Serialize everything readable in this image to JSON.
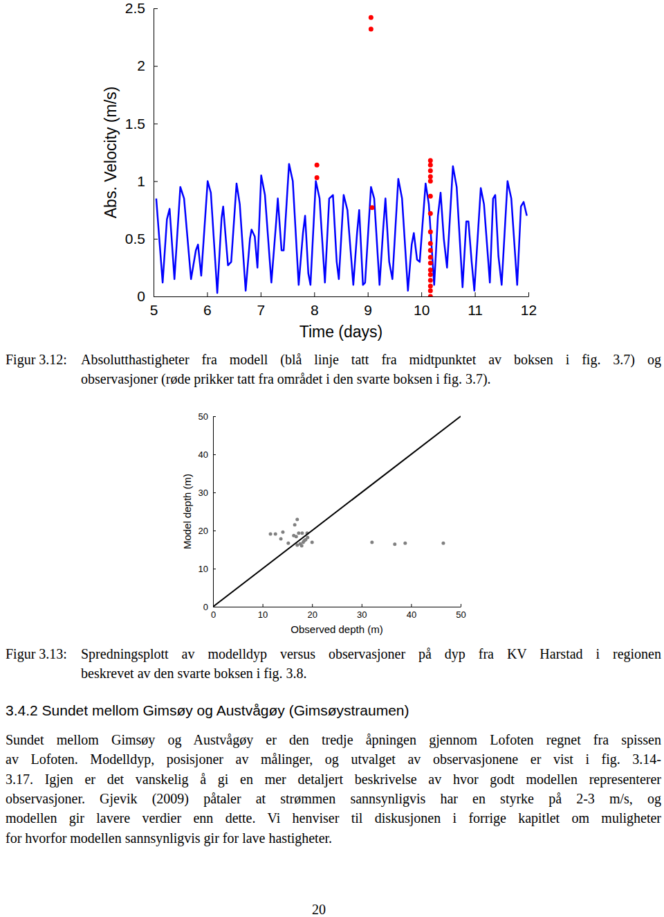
{
  "chart_data": [
    {
      "type": "line",
      "xlabel": "Time (days)",
      "ylabel": "Abs. Velocity (m/s)",
      "xlim": [
        5,
        12
      ],
      "ylim": [
        0,
        2.5
      ],
      "xticks": [
        5,
        6,
        7,
        8,
        9,
        10,
        11,
        12
      ],
      "yticks": [
        0,
        0.5,
        1,
        1.5,
        2,
        2.5
      ],
      "series": [
        {
          "type": "line",
          "color": "#0000ff",
          "line_style": "solid",
          "x": [
            5.05,
            5.17,
            5.25,
            5.3,
            5.39,
            5.5,
            5.57,
            5.7,
            5.79,
            5.83,
            5.89,
            6.01,
            6.07,
            6.19,
            6.27,
            6.3,
            6.39,
            6.45,
            6.55,
            6.61,
            6.72,
            6.8,
            6.83,
            6.89,
            6.94,
            7.01,
            7.08,
            7.2,
            7.29,
            7.32,
            7.39,
            7.43,
            7.53,
            7.6,
            7.71,
            7.79,
            7.83,
            7.89,
            7.93,
            8.03,
            8.1,
            8.2,
            8.28,
            8.35,
            8.42,
            8.46,
            8.55,
            8.62,
            8.73,
            8.8,
            8.84,
            8.91,
            8.95,
            9.06,
            9.12,
            9.22,
            9.29,
            9.33,
            9.4,
            9.46,
            9.57,
            9.64,
            9.75,
            9.82,
            9.86,
            9.92,
            9.97,
            10.08,
            10.14,
            10.24,
            10.31,
            10.36,
            10.42,
            10.48,
            10.59,
            10.66,
            10.77,
            10.84,
            10.88,
            10.94,
            10.99,
            11.11,
            11.17,
            11.28,
            11.34,
            11.38,
            11.44,
            11.5,
            11.61,
            11.68,
            11.79,
            11.86,
            11.91,
            11.97
          ],
          "values": [
            0.85,
            0.12,
            0.67,
            0.76,
            0.15,
            0.95,
            0.85,
            0.15,
            0.4,
            0.45,
            0.18,
            1.0,
            0.9,
            0.03,
            0.68,
            0.78,
            0.27,
            0.3,
            0.98,
            0.8,
            0.05,
            0.5,
            0.58,
            0.52,
            0.25,
            1.05,
            0.88,
            0.12,
            0.65,
            0.85,
            0.4,
            0.4,
            1.15,
            1.0,
            0.1,
            0.55,
            0.7,
            0.2,
            0.1,
            1.0,
            0.85,
            0.12,
            0.85,
            0.88,
            0.3,
            0.15,
            0.88,
            0.75,
            0.1,
            0.55,
            0.75,
            0.1,
            0.12,
            0.95,
            0.85,
            0.1,
            0.6,
            0.85,
            0.3,
            0.15,
            1.02,
            0.85,
            0.05,
            0.45,
            0.55,
            0.32,
            0.3,
            0.98,
            0.8,
            0.1,
            0.7,
            0.9,
            0.5,
            0.25,
            1.13,
            0.95,
            0.08,
            0.65,
            0.65,
            0.3,
            0.05,
            0.94,
            0.8,
            0.12,
            0.85,
            0.88,
            0.35,
            0.1,
            1.0,
            0.85,
            0.1,
            0.78,
            0.82,
            0.7
          ]
        },
        {
          "type": "scatter",
          "color": "#ff0000",
          "marker": "circle",
          "x": [
            8.05,
            8.05,
            9.06,
            9.06,
            9.08,
            10.17,
            10.17,
            10.17,
            10.17,
            10.17,
            10.17,
            10.17,
            10.17,
            10.17,
            10.17,
            10.17,
            10.17,
            10.17,
            10.17,
            10.17,
            10.17,
            10.17,
            10.17
          ],
          "values": [
            1.14,
            1.03,
            2.42,
            2.32,
            0.77,
            1.18,
            1.14,
            1.09,
            1.04,
            1.0,
            0.87,
            0.72,
            0.56,
            0.46,
            0.4,
            0.34,
            0.29,
            0.23,
            0.19,
            0.14,
            0.09,
            0.05,
            0.0
          ]
        }
      ]
    },
    {
      "type": "scatter",
      "xlabel": "Observed depth (m)",
      "ylabel": "Model depth (m)",
      "xlim": [
        0,
        50
      ],
      "ylim": [
        0,
        50
      ],
      "xticks": [
        0,
        10,
        20,
        30,
        40,
        50
      ],
      "yticks": [
        0,
        10,
        20,
        30,
        40,
        50
      ],
      "series": [
        {
          "type": "scatter",
          "color": "#808080",
          "marker": "circle",
          "x": [
            11.6,
            12.6,
            14.1,
            13.7,
            15.2,
            16.5,
            17.0,
            16.3,
            16.8,
            17.3,
            18.0,
            19.0,
            17.0,
            17.6,
            18.2,
            18.4,
            18.7,
            17.9,
            19.1,
            20.0,
            32.1,
            36.7,
            38.8,
            46.5
          ],
          "values": [
            19.1,
            19.1,
            19.6,
            17.8,
            16.7,
            21.5,
            22.9,
            18.7,
            18.4,
            19.3,
            19.3,
            19.3,
            16.2,
            16.5,
            16.9,
            17.3,
            17.6,
            16.0,
            18.2,
            16.9,
            16.9,
            16.4,
            16.7,
            16.7
          ]
        },
        {
          "type": "line",
          "color": "#000000",
          "line_style": "solid",
          "x": [
            0,
            50
          ],
          "values": [
            0,
            50
          ]
        }
      ]
    }
  ],
  "captions": [
    {
      "label": "Figur 3.12:",
      "lines": [
        "Absolutthastigheter fra modell (blå linje tatt fra midtpunktet av boksen i fig. 3.7) og",
        "observasjoner (røde prikker tatt fra området i den svarte boksen i fig. 3.7)."
      ]
    },
    {
      "label": "Figur 3.13:",
      "lines": [
        "Spredningsplott av modelldyp versus observasjoner på dyp fra KV Harstad i regionen",
        "beskrevet av den svarte boksen i fig. 3.8."
      ]
    }
  ],
  "section": {
    "number": "3.4.2",
    "title": "Sundet mellom Gimsøy og Austvågøy (Gimsøystraumen)"
  },
  "paragraph": {
    "lines": [
      "Sundet mellom Gimsøy og Austvågøy er den tredje åpningen gjennom Lofoten regnet fra spissen",
      "av Lofoten. Modelldyp, posisjoner av målinger, og utvalget av observasjonene er vist i fig. 3.14-",
      "3.17. Igjen er det vanskelig å gi en mer detaljert beskrivelse av hvor godt modellen representerer",
      "observasjoner. Gjevik (2009) påtaler at strømmen sannsynligvis har en styrke på 2-3 m/s, og",
      "modellen gir lavere verdier enn dette. Vi henviser til diskusjonen i forrige kapitlet om muligheter",
      "for hvorfor modellen sannsynligvis gir for lave hastigheter."
    ]
  },
  "page_number": 20
}
